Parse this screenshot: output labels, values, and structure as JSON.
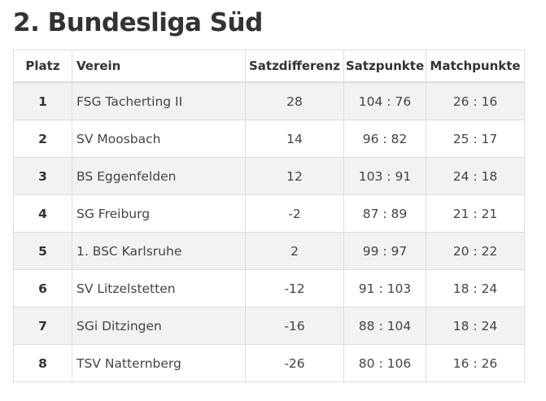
{
  "page": {
    "title": "2. Bundesliga Süd"
  },
  "table": {
    "headers": {
      "platz": "Platz",
      "verein": "Verein",
      "satzdifferenz": "Satzdifferenz",
      "satzpunkte": "Satzpunkte",
      "matchpunkte": "Matchpunkte"
    },
    "rows": [
      {
        "platz": "1",
        "verein": "FSG Tacherting II",
        "satzdifferenz": "28",
        "satzpunkte": "104 : 76",
        "matchpunkte": "26 : 16"
      },
      {
        "platz": "2",
        "verein": "SV Moosbach",
        "satzdifferenz": "14",
        "satzpunkte": "96 : 82",
        "matchpunkte": "25 : 17"
      },
      {
        "platz": "3",
        "verein": "BS Eggenfelden",
        "satzdifferenz": "12",
        "satzpunkte": "103 : 91",
        "matchpunkte": "24 : 18"
      },
      {
        "platz": "4",
        "verein": "SG Freiburg",
        "satzdifferenz": "-2",
        "satzpunkte": "87 : 89",
        "matchpunkte": "21 : 21"
      },
      {
        "platz": "5",
        "verein": "1. BSC Karlsruhe",
        "satzdifferenz": "2",
        "satzpunkte": "99 : 97",
        "matchpunkte": "20 : 22"
      },
      {
        "platz": "6",
        "verein": "SV Litzelstetten",
        "satzdifferenz": "-12",
        "satzpunkte": "91 : 103",
        "matchpunkte": "18 : 24"
      },
      {
        "platz": "7",
        "verein": "SGi Ditzingen",
        "satzdifferenz": "-16",
        "satzpunkte": "88 : 104",
        "matchpunkte": "18 : 24"
      },
      {
        "platz": "8",
        "verein": "TSV Natternberg",
        "satzdifferenz": "-26",
        "satzpunkte": "80 : 106",
        "matchpunkte": "16 : 26"
      }
    ]
  }
}
